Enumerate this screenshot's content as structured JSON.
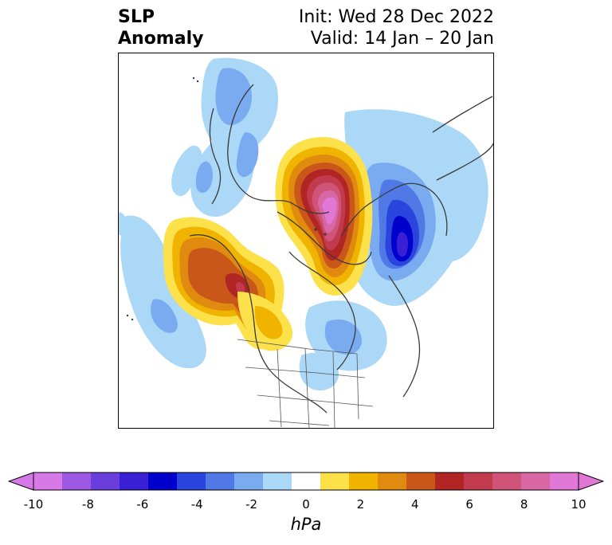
{
  "title": {
    "line1": "SLP",
    "line2": "Anomaly",
    "init": "Init: Wed 28 Dec 2022",
    "valid": "Valid: 14 Jan – 20 Jan"
  },
  "colorbar": {
    "unit": "hPa",
    "ticks": [
      "-10",
      "-8",
      "-6",
      "-4",
      "-2",
      "0",
      "2",
      "4",
      "6",
      "8",
      "10"
    ],
    "colors": [
      "#d77ae7",
      "#9c57e3",
      "#6a3edc",
      "#3a1fd4",
      "#0000cc",
      "#2a45dd",
      "#5079e6",
      "#7aabf1",
      "#acd8f8",
      "#ffffff",
      "#fde14a",
      "#f0b400",
      "#e08a10",
      "#c9571a",
      "#b22525",
      "#c23a4e",
      "#cf5478",
      "#d868a5",
      "#e278d6"
    ]
  },
  "map": {
    "projection": "north-polar-stereographic",
    "features": {
      "positive_anomaly_greenland_arctic": "warm",
      "positive_anomaly_gulf_of_alaska": "warm",
      "negative_anomaly_northern_europe": "cold",
      "negative_anomaly_north_atlantic": "cold",
      "negative_anomaly_north_pacific": "cold",
      "negative_anomaly_eastern_asia": "cold"
    }
  }
}
